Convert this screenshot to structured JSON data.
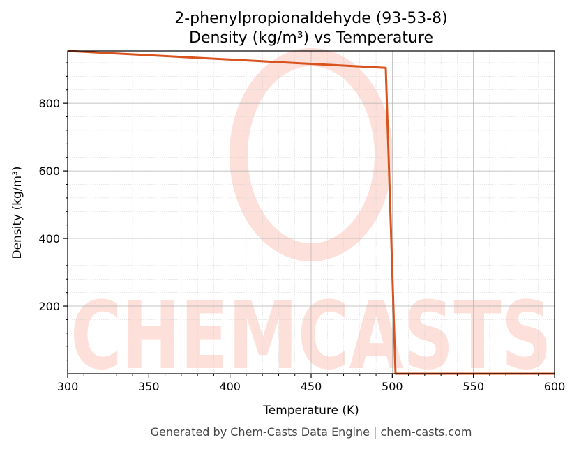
{
  "title_line1": "2-phenylpropionaldehyde (93-53-8)",
  "title_line2": "Density (kg/m³) vs Temperature",
  "xlabel": "Temperature (K)",
  "ylabel": "Density (kg/m³)",
  "footer": "Generated by Chem-Casts Data Engine | chem-casts.com",
  "watermark": "CHEMCASTS",
  "colors": {
    "line": "#d9531e",
    "watermark": "#fde0da",
    "grid": "#b0b0b0"
  },
  "chart_data": {
    "type": "line",
    "title": "2-phenylpropionaldehyde (93-53-8)\nDensity (kg/m³) vs Temperature",
    "xlabel": "Temperature (K)",
    "ylabel": "Density (kg/m³)",
    "xlim": [
      300,
      600
    ],
    "ylim": [
      0,
      955
    ],
    "xticks": [
      300,
      350,
      400,
      450,
      500,
      550,
      600
    ],
    "yticks": [
      200,
      400,
      600,
      800
    ],
    "grid": true,
    "minor_grid": true,
    "series": [
      {
        "color": "#d9531e",
        "x": [
          300,
          496,
          502,
          600
        ],
        "y": [
          955,
          905,
          0,
          0
        ]
      }
    ]
  }
}
